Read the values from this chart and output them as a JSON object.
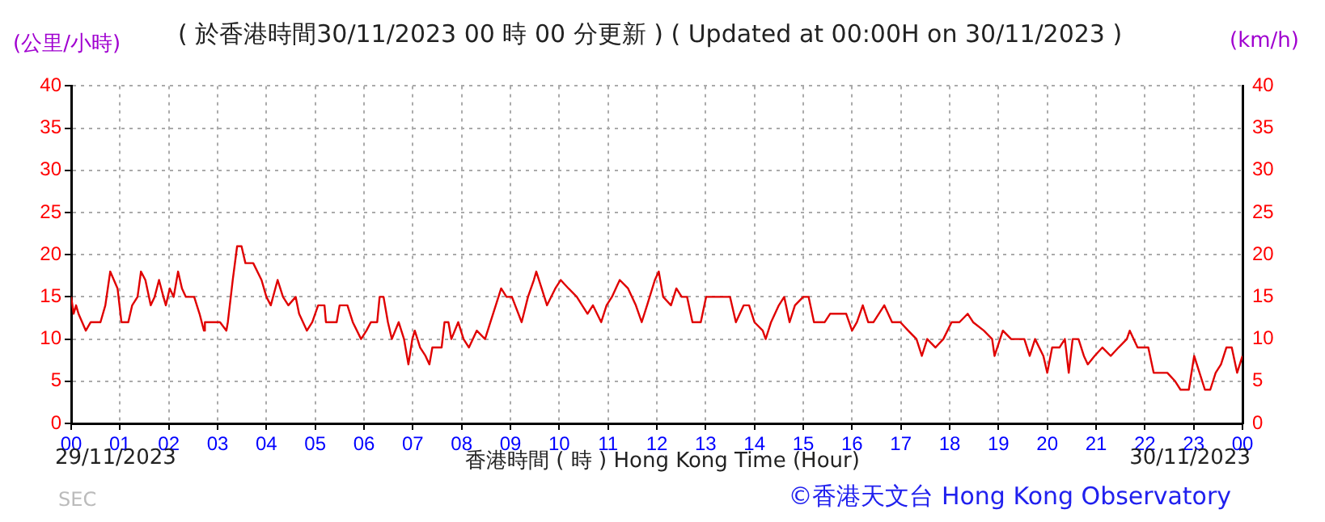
{
  "chart_data": {
    "type": "line",
    "title": "( 於香港時間30/11/2023 00 時 00 分更新 ) ( Updated at 00:00H on 30/11/2023 )",
    "ylabel": "(公里/小時)",
    "y2label": "(km/h)",
    "xlabel": "香港時間 ( 時 )  Hong Kong Time (Hour)",
    "annotations": [
      "29/11/2023",
      "30/11/2023",
      "SEC",
      "©香港天文台 Hong Kong Observatory"
    ],
    "grid": true,
    "legend": false,
    "marker": "none",
    "line_style": "solid",
    "xlim": [
      0,
      24
    ],
    "xticks": [
      {
        "value": 0,
        "label": "00"
      },
      {
        "value": 1,
        "label": "01"
      },
      {
        "value": 2,
        "label": "02"
      },
      {
        "value": 3,
        "label": "03"
      },
      {
        "value": 4,
        "label": "04"
      },
      {
        "value": 5,
        "label": "05"
      },
      {
        "value": 6,
        "label": "06"
      },
      {
        "value": 7,
        "label": "07"
      },
      {
        "value": 8,
        "label": "08"
      },
      {
        "value": 9,
        "label": "09"
      },
      {
        "value": 10,
        "label": "10"
      },
      {
        "value": 11,
        "label": "11"
      },
      {
        "value": 12,
        "label": "12"
      },
      {
        "value": 13,
        "label": "13"
      },
      {
        "value": 14,
        "label": "14"
      },
      {
        "value": 15,
        "label": "15"
      },
      {
        "value": 16,
        "label": "16"
      },
      {
        "value": 17,
        "label": "17"
      },
      {
        "value": 18,
        "label": "18"
      },
      {
        "value": 19,
        "label": "19"
      },
      {
        "value": 20,
        "label": "20"
      },
      {
        "value": 21,
        "label": "21"
      },
      {
        "value": 22,
        "label": "22"
      },
      {
        "value": 23,
        "label": "23"
      },
      {
        "value": 24,
        "label": "00"
      }
    ],
    "ylim": [
      0,
      40
    ],
    "yticks": [
      0,
      5,
      10,
      15,
      20,
      25,
      30,
      35,
      40
    ],
    "y2lim": [
      0,
      40
    ],
    "y2ticks": [
      0,
      5,
      10,
      15,
      20,
      25,
      30,
      35,
      40
    ],
    "series": [
      {
        "color": "#e00000",
        "x": [
          0,
          0.05,
          0.1,
          0.15,
          0.3,
          0.4,
          0.6,
          0.7,
          0.8,
          0.95,
          1.03,
          1.17,
          1.25,
          1.36,
          1.43,
          1.52,
          1.63,
          1.71,
          1.8,
          1.89,
          1.94,
          2.02,
          2.1,
          2.19,
          2.27,
          2.35,
          2.52,
          2.63,
          2.72,
          2.74,
          3.05,
          3.18,
          3.21,
          3.31,
          3.4,
          3.49,
          3.57,
          3.73,
          3.9,
          4.0,
          4.09,
          4.23,
          4.34,
          4.45,
          4.6,
          4.67,
          4.83,
          4.94,
          5.06,
          5.19,
          5.22,
          5.44,
          5.5,
          5.66,
          5.77,
          5.94,
          6.05,
          6.14,
          6.27,
          6.32,
          6.4,
          6.49,
          6.57,
          6.71,
          6.82,
          6.91,
          6.99,
          7.04,
          7.15,
          7.26,
          7.34,
          7.4,
          7.59,
          7.65,
          7.73,
          7.79,
          7.93,
          8.04,
          8.15,
          8.31,
          8.48,
          8.59,
          8.7,
          8.81,
          8.92,
          9.03,
          9.23,
          9.36,
          9.48,
          9.53,
          9.64,
          9.75,
          9.92,
          10.03,
          10.19,
          10.36,
          10.58,
          10.69,
          10.86,
          10.97,
          11.08,
          11.24,
          11.41,
          11.57,
          11.69,
          11.8,
          11.96,
          12.04,
          12.13,
          12.29,
          12.4,
          12.51,
          12.62,
          12.73,
          12.9,
          13.01,
          13.17,
          13.5,
          13.62,
          13.78,
          13.89,
          14.0,
          14.17,
          14.23,
          14.34,
          14.5,
          14.61,
          14.72,
          14.83,
          15.0,
          15.11,
          15.22,
          15.44,
          15.55,
          15.88,
          16.0,
          16.1,
          16.22,
          16.33,
          16.44,
          16.66,
          16.82,
          16.99,
          17.15,
          17.32,
          17.43,
          17.54,
          17.71,
          17.87,
          18.04,
          18.2,
          18.37,
          18.48,
          18.7,
          18.87,
          18.92,
          19.09,
          19.26,
          19.53,
          19.64,
          19.75,
          19.92,
          20.0,
          20.1,
          20.25,
          20.36,
          20.44,
          20.52,
          20.64,
          20.75,
          20.83,
          20.97,
          21.13,
          21.3,
          21.46,
          21.63,
          21.69,
          21.85,
          22.07,
          22.18,
          22.46,
          22.62,
          22.73,
          22.9,
          23.01,
          23.12,
          23.23,
          23.34,
          23.45,
          23.56,
          23.67,
          23.78,
          23.89,
          24.0
        ],
        "values": [
          15,
          13,
          14,
          13,
          11,
          12,
          12,
          14,
          18,
          16,
          12,
          12,
          14,
          15,
          18,
          17,
          14,
          15,
          17,
          15,
          14,
          16,
          15,
          18,
          16,
          15,
          15,
          13,
          11,
          12,
          12,
          11,
          12,
          17,
          21,
          21,
          19,
          19,
          17,
          15,
          14,
          17,
          15,
          14,
          15,
          13,
          11,
          12,
          14,
          14,
          12,
          12,
          14,
          14,
          12,
          10,
          11,
          12,
          12,
          15,
          15,
          12,
          10,
          12,
          10,
          7,
          10,
          11,
          9,
          8,
          7,
          9,
          9,
          12,
          12,
          10,
          12,
          10,
          9,
          11,
          10,
          12,
          14,
          16,
          15,
          15,
          12,
          15,
          17,
          18,
          16,
          14,
          16,
          17,
          16,
          15,
          13,
          14,
          12,
          14,
          15,
          17,
          16,
          14,
          12,
          14,
          17,
          18,
          15,
          14,
          16,
          15,
          15,
          12,
          12,
          15,
          15,
          15,
          12,
          14,
          14,
          12,
          11,
          10,
          12,
          14,
          15,
          12,
          14,
          15,
          15,
          12,
          12,
          13,
          13,
          11,
          12,
          14,
          12,
          12,
          14,
          12,
          12,
          11,
          10,
          8,
          10,
          9,
          10,
          12,
          12,
          13,
          12,
          11,
          10,
          8,
          11,
          10,
          10,
          8,
          10,
          8,
          6,
          9,
          9,
          10,
          6,
          10,
          10,
          8,
          7,
          8,
          9,
          8,
          9,
          10,
          11,
          9,
          9,
          6,
          6,
          5,
          4,
          4,
          8,
          6,
          4,
          4,
          6,
          7,
          9,
          9,
          6,
          8
        ]
      }
    ]
  }
}
